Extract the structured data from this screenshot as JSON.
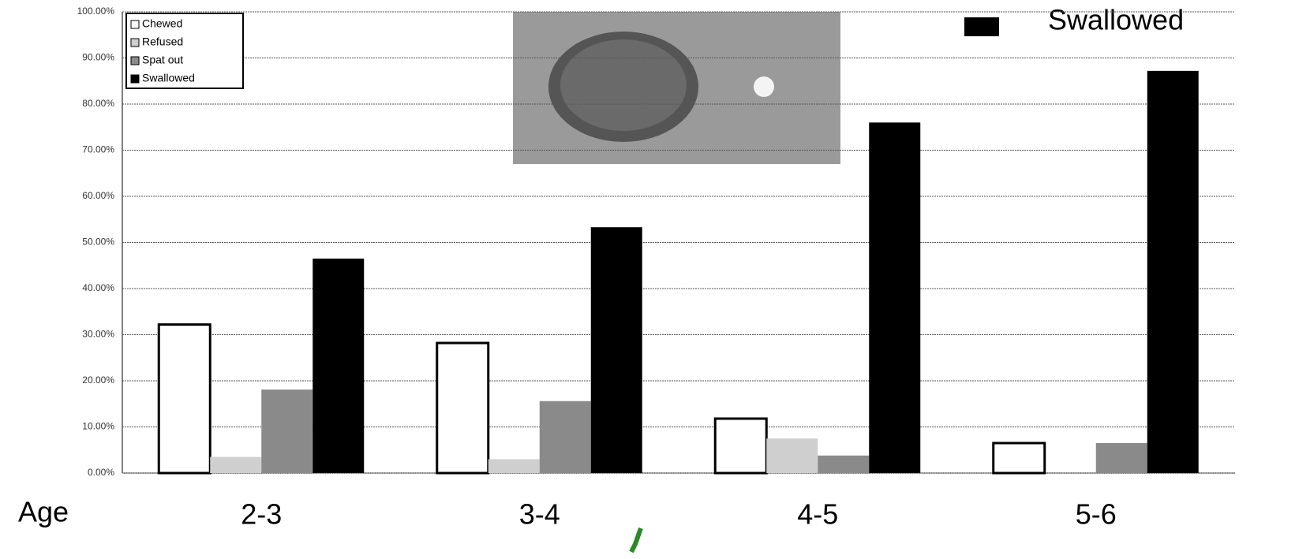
{
  "chart_data": {
    "type": "bar",
    "categories": [
      "2-3",
      "3-4",
      "4-5",
      "5-6"
    ],
    "x_label": "Age",
    "highlight_label": "Swallowed",
    "series": [
      {
        "name": "Chewed",
        "color": "#ffffff",
        "values": [
          32.2,
          28.2,
          11.8,
          6.5
        ]
      },
      {
        "name": "Refused",
        "color": "#cfcfcf",
        "values": [
          3.5,
          3,
          7.5,
          0
        ]
      },
      {
        "name": "Spat out",
        "color": "#8a8a8a",
        "values": [
          18.1,
          15.6,
          3.8,
          6.5
        ]
      },
      {
        "name": "Swallowed",
        "color": "#000000",
        "values": [
          46.5,
          53.3,
          76,
          87.2
        ]
      }
    ],
    "ylim": [
      0,
      100
    ],
    "yticks": [
      {
        "value": 0,
        "label": "0.00%"
      },
      {
        "value": 10,
        "label": "10.00%"
      },
      {
        "value": 20,
        "label": "20.00%"
      },
      {
        "value": 30,
        "label": "30.00%"
      },
      {
        "value": 40,
        "label": "40.00%"
      },
      {
        "value": 50,
        "label": "50.00%"
      },
      {
        "value": 60,
        "label": "60.00%"
      },
      {
        "value": 70,
        "label": "70.00%"
      },
      {
        "value": 80,
        "label": "80.00%"
      },
      {
        "value": 90,
        "label": "90.00%"
      },
      {
        "value": 100,
        "label": "100.00%"
      }
    ],
    "grid": true
  }
}
